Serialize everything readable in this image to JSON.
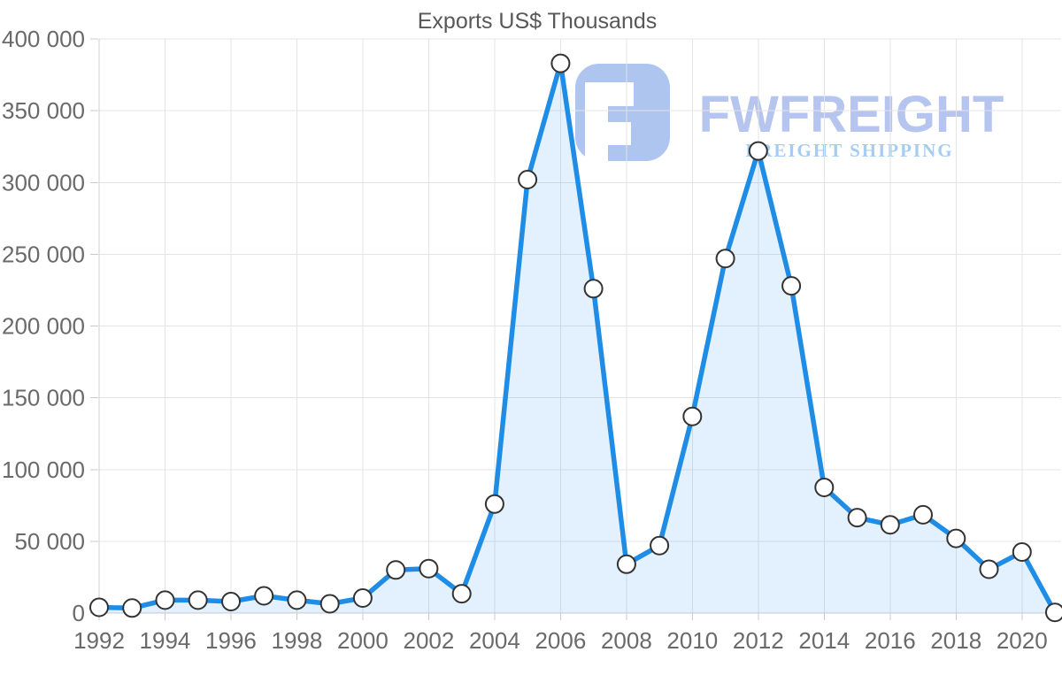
{
  "page": {
    "background": "#ffffff"
  },
  "watermark": {
    "brand": "FWFREIGHT",
    "tagline": "FREIGHT SHIPPING",
    "logo_mark": "rounded-square-F-monogram",
    "colors": {
      "mark": "#aec5ef",
      "brand_text": "#b6c5f0",
      "tagline_text": "#a5cdf3"
    }
  },
  "chart_data": {
    "type": "area",
    "title": "Exports US$ Thousands",
    "xlabel": "",
    "ylabel": "",
    "legend": false,
    "grid": true,
    "marker": "circle",
    "ylim": [
      0,
      400000
    ],
    "x": [
      1992,
      1993,
      1994,
      1995,
      1996,
      1997,
      1998,
      1999,
      2000,
      2001,
      2002,
      2003,
      2004,
      2005,
      2006,
      2007,
      2008,
      2009,
      2010,
      2011,
      2012,
      2013,
      2014,
      2015,
      2016,
      2017,
      2018,
      2019,
      2020,
      2021
    ],
    "series": [
      {
        "name": "Exports US$ Thousands",
        "values": [
          4000,
          3500,
          9000,
          9000,
          8000,
          12000,
          9000,
          6500,
          10500,
          30000,
          31000,
          13500,
          76000,
          302000,
          383000,
          226000,
          34000,
          47000,
          137000,
          247000,
          322000,
          228000,
          87500,
          66500,
          61500,
          68500,
          52000,
          30500,
          42500,
          500
        ]
      }
    ],
    "yticks": [
      {
        "value": 400000,
        "label": "400 000"
      },
      {
        "value": 350000,
        "label": "350 000"
      },
      {
        "value": 300000,
        "label": "300 000"
      },
      {
        "value": 250000,
        "label": "250 000"
      },
      {
        "value": 200000,
        "label": "200 000"
      },
      {
        "value": 150000,
        "label": "150 000"
      },
      {
        "value": 100000,
        "label": "100 000"
      },
      {
        "value": 50000,
        "label": "50 000"
      },
      {
        "value": 0,
        "label": "0"
      }
    ],
    "xticks": [
      {
        "value": 1992,
        "label": "1992"
      },
      {
        "value": 1994,
        "label": "1994"
      },
      {
        "value": 1996,
        "label": "1996"
      },
      {
        "value": 1998,
        "label": "1998"
      },
      {
        "value": 2000,
        "label": "2000"
      },
      {
        "value": 2002,
        "label": "2002"
      },
      {
        "value": 2004,
        "label": "2004"
      },
      {
        "value": 2006,
        "label": "2006"
      },
      {
        "value": 2008,
        "label": "2008"
      },
      {
        "value": 2010,
        "label": "2010"
      },
      {
        "value": 2012,
        "label": "2012"
      },
      {
        "value": 2014,
        "label": "2014"
      },
      {
        "value": 2016,
        "label": "2016"
      },
      {
        "value": 2018,
        "label": "2018"
      },
      {
        "value": 2020,
        "label": "2020"
      }
    ],
    "colors": {
      "line": "#1f8ce6",
      "area_fill": "#2196f3",
      "marker_fill": "#ffffff",
      "marker_stroke": "#333333",
      "grid": "#e4e4e4",
      "axis": "#cfcfcf",
      "title_text": "#58585a",
      "tick_text": "#6a6a6a"
    }
  }
}
